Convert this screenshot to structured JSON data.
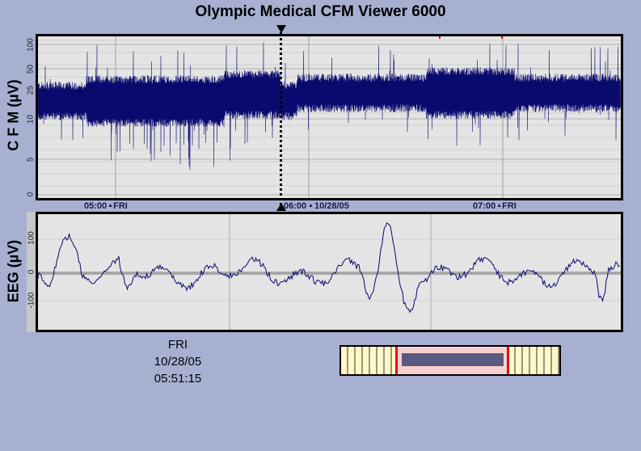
{
  "app": {
    "title": "Olympic Medical CFM Viewer 6000"
  },
  "cfm": {
    "ylabel": "C F M (µV)",
    "yticks": [
      "0",
      "5",
      "10",
      "25",
      "50",
      "100"
    ],
    "time_ticks": [
      {
        "time": "05:00",
        "day": "FRI"
      },
      {
        "time": "06:00",
        "day": ""
      },
      {
        "time": "07:00",
        "day": "FRI"
      }
    ],
    "date_label": "10/28/05",
    "trace_color": "#0a0a6e"
  },
  "eeg": {
    "ylabel": "EEG (µV)",
    "yticks": [
      "100",
      "0",
      "-100"
    ],
    "trace_color": "#0a0a6e"
  },
  "cursor": {
    "day": "FRI",
    "date": "10/28/05",
    "time": "05:51:15"
  },
  "navigator": {
    "colors": {
      "background": "#fff8c8",
      "window": "#f6d0d0",
      "edges": "#e01010",
      "thumb": "#5a5a80"
    }
  }
}
